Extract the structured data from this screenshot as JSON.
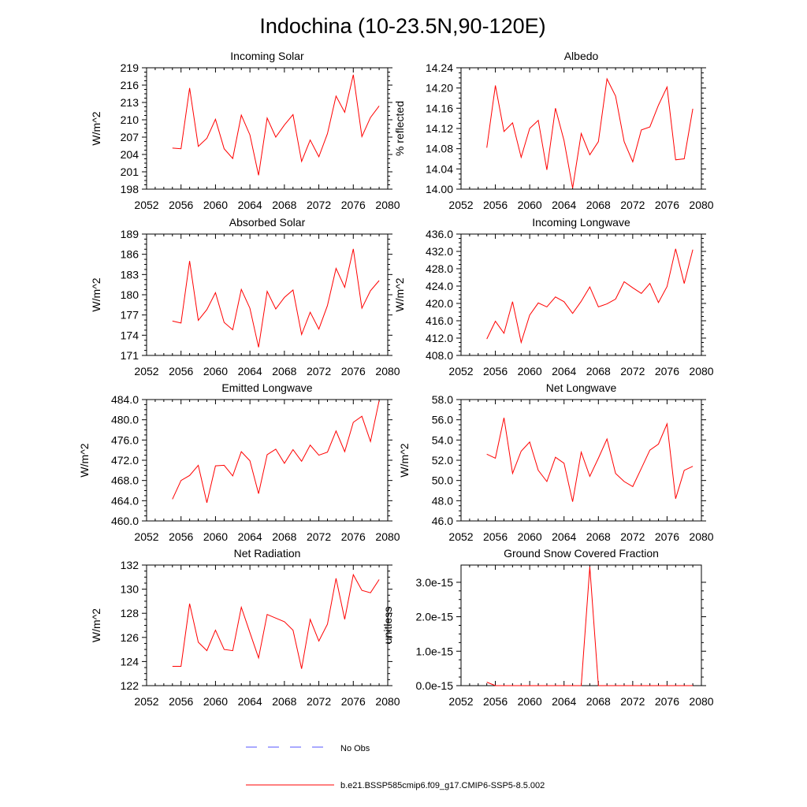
{
  "title": "Indochina (10-23.5N,90-120E)",
  "colors": {
    "model": "#ff0000",
    "obs": "#5555ff",
    "axis": "#000000"
  },
  "legend": {
    "obs_label": "No Obs",
    "model_label": "b.e21.BSSP585cmip6.f09_g17.CMIP6-SSP5-8.5.002"
  },
  "chart_data": [
    {
      "type": "line",
      "title": "Incoming Solar",
      "ylabel": "W/m^2",
      "xlim": [
        2052,
        2080
      ],
      "ylim": [
        198,
        219
      ],
      "xticks": [
        2052,
        2056,
        2060,
        2064,
        2068,
        2072,
        2076,
        2080
      ],
      "yticks": [
        198,
        201,
        204,
        207,
        210,
        213,
        216,
        219
      ],
      "ytick_labels": [
        "198",
        "201",
        "204",
        "207",
        "210",
        "213",
        "216",
        "219"
      ],
      "series": [
        {
          "x": [
            2055,
            2056,
            2057,
            2058,
            2059,
            2060,
            2061,
            2062,
            2063,
            2064,
            2065,
            2066,
            2067,
            2068,
            2069,
            2070,
            2071,
            2072,
            2073,
            2074,
            2075,
            2076,
            2077,
            2078,
            2079
          ],
          "values": [
            205.1,
            205.0,
            215.5,
            205.4,
            206.8,
            210.1,
            205.0,
            203.3,
            210.8,
            207.4,
            200.4,
            210.3,
            207.0,
            209.1,
            210.9,
            202.8,
            206.5,
            203.6,
            207.6,
            214.1,
            211.3,
            217.8,
            207.1,
            210.4,
            212.4
          ]
        }
      ]
    },
    {
      "type": "line",
      "title": "Albedo",
      "ylabel": "% reflected",
      "xlim": [
        2052,
        2080
      ],
      "ylim": [
        14.0,
        14.24
      ],
      "xticks": [
        2052,
        2056,
        2060,
        2064,
        2068,
        2072,
        2076,
        2080
      ],
      "yticks": [
        14.0,
        14.04,
        14.08,
        14.12,
        14.16,
        14.2,
        14.24
      ],
      "ytick_labels": [
        "14.00",
        "14.04",
        "14.08",
        "14.12",
        "14.16",
        "14.20",
        "14.24"
      ],
      "series": [
        {
          "x": [
            2055,
            2056,
            2057,
            2058,
            2059,
            2060,
            2061,
            2062,
            2063,
            2064,
            2065,
            2066,
            2067,
            2068,
            2069,
            2070,
            2071,
            2072,
            2073,
            2074,
            2075,
            2076,
            2077,
            2078,
            2079
          ],
          "values": [
            14.082,
            14.205,
            14.114,
            14.131,
            14.063,
            14.12,
            14.136,
            14.038,
            14.16,
            14.096,
            14.002,
            14.11,
            14.068,
            14.094,
            14.218,
            14.184,
            14.094,
            14.054,
            14.117,
            14.123,
            14.166,
            14.202,
            14.058,
            14.06,
            14.159
          ]
        }
      ]
    },
    {
      "type": "line",
      "title": "Absorbed Solar",
      "ylabel": "W/m^2",
      "xlim": [
        2052,
        2080
      ],
      "ylim": [
        171,
        189
      ],
      "xticks": [
        2052,
        2056,
        2060,
        2064,
        2068,
        2072,
        2076,
        2080
      ],
      "yticks": [
        171,
        174,
        177,
        180,
        183,
        186,
        189
      ],
      "ytick_labels": [
        "171",
        "174",
        "177",
        "180",
        "183",
        "186",
        "189"
      ],
      "series": [
        {
          "x": [
            2055,
            2056,
            2057,
            2058,
            2059,
            2060,
            2061,
            2062,
            2063,
            2064,
            2065,
            2066,
            2067,
            2068,
            2069,
            2070,
            2071,
            2072,
            2073,
            2074,
            2075,
            2076,
            2077,
            2078,
            2079
          ],
          "values": [
            176.1,
            175.8,
            185.0,
            176.2,
            177.8,
            180.3,
            175.9,
            174.8,
            180.8,
            178.0,
            172.2,
            180.5,
            177.9,
            179.6,
            180.7,
            174.1,
            177.4,
            174.9,
            178.4,
            183.9,
            181.1,
            186.8,
            178.0,
            180.6,
            182.1
          ]
        }
      ]
    },
    {
      "type": "line",
      "title": "Incoming Longwave",
      "ylabel": "W/m^2",
      "xlim": [
        2052,
        2080
      ],
      "ylim": [
        408.0,
        436.0
      ],
      "xticks": [
        2052,
        2056,
        2060,
        2064,
        2068,
        2072,
        2076,
        2080
      ],
      "yticks": [
        408,
        412,
        416,
        420,
        424,
        428,
        432,
        436
      ],
      "ytick_labels": [
        "408.0",
        "412.0",
        "416.0",
        "420.0",
        "424.0",
        "428.0",
        "432.0",
        "436.0"
      ],
      "series": [
        {
          "x": [
            2055,
            2056,
            2057,
            2058,
            2059,
            2060,
            2061,
            2062,
            2063,
            2064,
            2065,
            2066,
            2067,
            2068,
            2069,
            2070,
            2071,
            2072,
            2073,
            2074,
            2075,
            2076,
            2077,
            2078,
            2079
          ],
          "values": [
            411.8,
            415.9,
            413.1,
            420.4,
            411.0,
            417.3,
            420.1,
            419.2,
            421.5,
            420.4,
            417.7,
            420.5,
            423.8,
            419.2,
            419.9,
            421.0,
            425.0,
            423.6,
            422.3,
            424.6,
            420.2,
            423.9,
            432.6,
            424.6,
            432.4
          ]
        }
      ]
    },
    {
      "type": "line",
      "title": "Emitted Longwave",
      "ylabel": "W/m^2",
      "xlim": [
        2052,
        2080
      ],
      "ylim": [
        460.0,
        484.0
      ],
      "xticks": [
        2052,
        2056,
        2060,
        2064,
        2068,
        2072,
        2076,
        2080
      ],
      "yticks": [
        460,
        464,
        468,
        472,
        476,
        480,
        484
      ],
      "ytick_labels": [
        "460.0",
        "464.0",
        "468.0",
        "472.0",
        "476.0",
        "480.0",
        "484.0"
      ],
      "series": [
        {
          "x": [
            2055,
            2056,
            2057,
            2058,
            2059,
            2060,
            2061,
            2062,
            2063,
            2064,
            2065,
            2066,
            2067,
            2068,
            2069,
            2070,
            2071,
            2072,
            2073,
            2074,
            2075,
            2076,
            2077,
            2078,
            2079
          ],
          "values": [
            464.3,
            468.0,
            469.0,
            471.0,
            463.6,
            470.9,
            471.0,
            468.9,
            473.7,
            471.9,
            465.4,
            473.1,
            474.2,
            471.4,
            474.1,
            471.8,
            475.0,
            473.0,
            473.6,
            477.8,
            473.7,
            479.5,
            480.7,
            475.7,
            483.8
          ]
        }
      ]
    },
    {
      "type": "line",
      "title": "Net Longwave",
      "ylabel": "W/m^2",
      "xlim": [
        2052,
        2080
      ],
      "ylim": [
        46.0,
        58.0
      ],
      "xticks": [
        2052,
        2056,
        2060,
        2064,
        2068,
        2072,
        2076,
        2080
      ],
      "yticks": [
        46,
        48,
        50,
        52,
        54,
        56,
        58
      ],
      "ytick_labels": [
        "46.0",
        "48.0",
        "50.0",
        "52.0",
        "54.0",
        "56.0",
        "58.0"
      ],
      "series": [
        {
          "x": [
            2055,
            2056,
            2057,
            2058,
            2059,
            2060,
            2061,
            2062,
            2063,
            2064,
            2065,
            2066,
            2067,
            2068,
            2069,
            2070,
            2071,
            2072,
            2073,
            2074,
            2075,
            2076,
            2077,
            2078,
            2079
          ],
          "values": [
            52.6,
            52.2,
            56.2,
            50.7,
            52.9,
            53.8,
            51.0,
            49.9,
            52.3,
            51.7,
            47.9,
            52.8,
            50.4,
            52.2,
            54.1,
            50.7,
            49.9,
            49.4,
            51.2,
            53.0,
            53.6,
            55.6,
            48.2,
            51.0,
            51.4
          ]
        }
      ]
    },
    {
      "type": "line",
      "title": "Net Radiation",
      "ylabel": "W/m^2",
      "xlim": [
        2052,
        2080
      ],
      "ylim": [
        122,
        132
      ],
      "xticks": [
        2052,
        2056,
        2060,
        2064,
        2068,
        2072,
        2076,
        2080
      ],
      "yticks": [
        122,
        124,
        126,
        128,
        130,
        132
      ],
      "ytick_labels": [
        "122",
        "124",
        "126",
        "128",
        "130",
        "132"
      ],
      "series": [
        {
          "x": [
            2055,
            2056,
            2057,
            2058,
            2059,
            2060,
            2061,
            2062,
            2063,
            2064,
            2065,
            2066,
            2067,
            2068,
            2069,
            2070,
            2071,
            2072,
            2073,
            2074,
            2075,
            2076,
            2077,
            2078,
            2079
          ],
          "values": [
            123.6,
            123.6,
            128.8,
            125.6,
            124.9,
            126.6,
            125.0,
            124.9,
            128.5,
            126.4,
            124.3,
            127.9,
            127.6,
            127.3,
            126.6,
            123.4,
            127.5,
            125.7,
            127.1,
            130.9,
            127.5,
            131.2,
            129.9,
            129.7,
            130.8
          ]
        }
      ]
    },
    {
      "type": "line",
      "title": "Ground Snow Covered Fraction",
      "ylabel": "unitless",
      "xlim": [
        2052,
        2080
      ],
      "ylim": [
        0,
        3.5e-15
      ],
      "xticks": [
        2052,
        2056,
        2060,
        2064,
        2068,
        2072,
        2076,
        2080
      ],
      "yticks": [
        0,
        1e-15,
        2e-15,
        3e-15
      ],
      "ytick_labels": [
        "0.0e-15",
        "1.0e-15",
        "2.0e-15",
        "3.0e-15"
      ],
      "series": [
        {
          "x": [
            2055,
            2056,
            2057,
            2058,
            2059,
            2060,
            2061,
            2062,
            2063,
            2064,
            2065,
            2066,
            2067,
            2068,
            2069,
            2070,
            2071,
            2072,
            2073,
            2074,
            2075,
            2076,
            2077,
            2078,
            2079
          ],
          "values": [
            1e-16,
            0,
            0,
            0,
            0,
            0,
            0,
            0,
            0,
            0,
            0,
            0,
            3.45e-15,
            0,
            0,
            0,
            0,
            0,
            0,
            0,
            0,
            0,
            0,
            0,
            0
          ]
        }
      ]
    }
  ]
}
